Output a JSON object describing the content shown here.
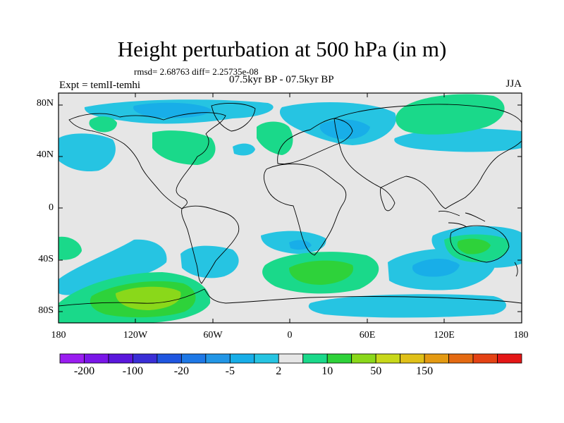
{
  "title": "Height perturbation at 500 hPa (in m)",
  "stats": "rmsd= 2.68763 diff= 2.25735e-08",
  "period": "07.5kyr BP - 07.5kyr BP",
  "experiment": "Expt = temlI-temhi",
  "season": "JJA",
  "map": {
    "lon_range": [
      -180,
      180
    ],
    "lat_range": [
      -90,
      90
    ],
    "lat_ticks": [
      {
        "value": 80,
        "label": "80N"
      },
      {
        "value": 40,
        "label": "40N"
      },
      {
        "value": 0,
        "label": "0"
      },
      {
        "value": -40,
        "label": "40S"
      },
      {
        "value": -80,
        "label": "80S"
      }
    ],
    "lon_ticks": [
      {
        "value": -180,
        "label": "180"
      },
      {
        "value": -120,
        "label": "120W"
      },
      {
        "value": -60,
        "label": "60W"
      },
      {
        "value": 0,
        "label": "0"
      },
      {
        "value": 60,
        "label": "60E"
      },
      {
        "value": 120,
        "label": "120E"
      },
      {
        "value": 180,
        "label": "180"
      }
    ],
    "neutral_color": "#e6e6e6"
  },
  "colorbar": {
    "colors": [
      "#9a1df0",
      "#7a16e8",
      "#5a17dc",
      "#3a2ed6",
      "#1f56e0",
      "#1e78e6",
      "#2296e6",
      "#18aee8",
      "#26c4e2",
      "#e6e6e6",
      "#1ad98a",
      "#2ed23a",
      "#8ad81a",
      "#c8d81a",
      "#e0c018",
      "#e49a12",
      "#e46a12",
      "#e44214",
      "#e41616"
    ],
    "labels": [
      {
        "index": 1,
        "text": "-200"
      },
      {
        "index": 3,
        "text": "-100"
      },
      {
        "index": 5,
        "text": "-20"
      },
      {
        "index": 7,
        "text": "-5"
      },
      {
        "index": 9,
        "text": "2"
      },
      {
        "index": 11,
        "text": "10"
      },
      {
        "index": 13,
        "text": "50"
      },
      {
        "index": 15,
        "text": "150"
      }
    ]
  }
}
